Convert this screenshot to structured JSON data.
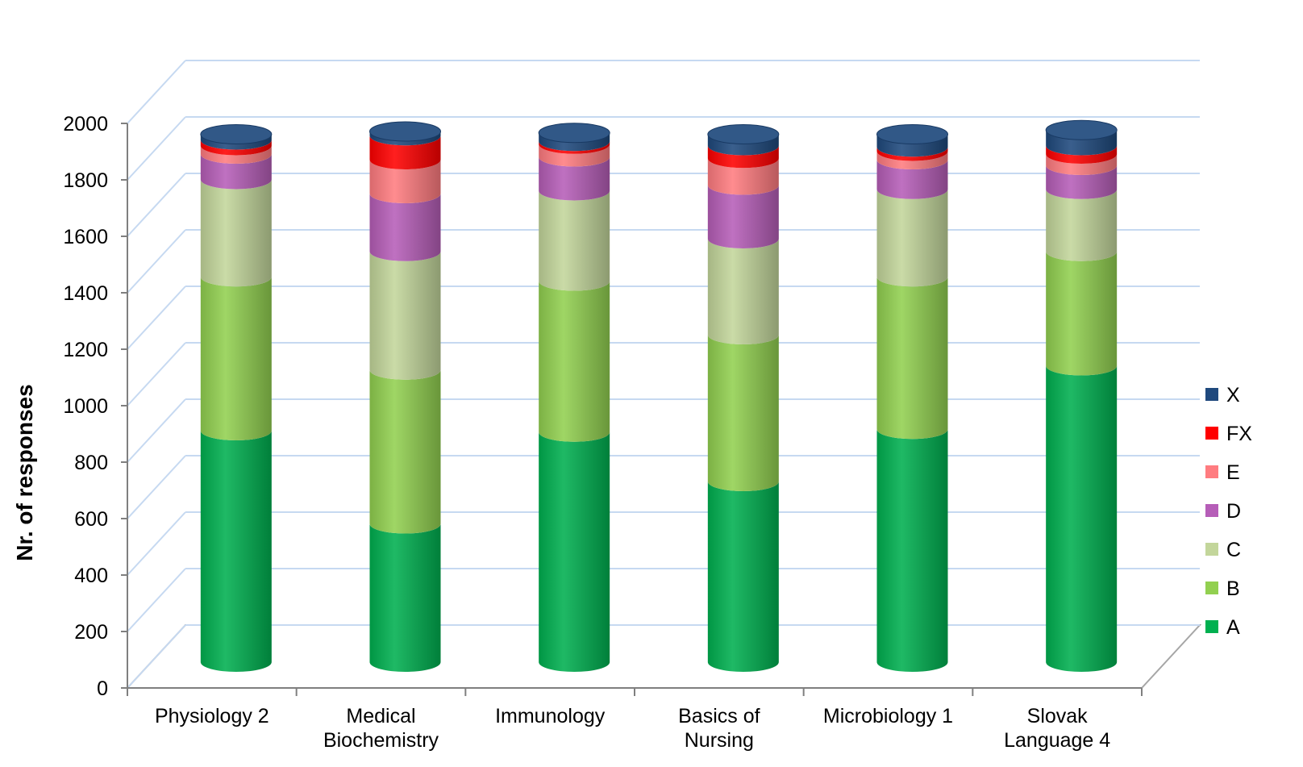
{
  "chart_data": {
    "type": "bar",
    "stacked": true,
    "style": "3d-cylinder",
    "title": "",
    "xlabel": "",
    "ylabel": "Nr. of responses",
    "ylim": [
      0,
      2000
    ],
    "yticks": [
      0,
      200,
      400,
      600,
      800,
      1000,
      1200,
      1400,
      1600,
      1800,
      2000
    ],
    "grid": true,
    "legend_position": "right",
    "categories": [
      [
        "Physiology 2"
      ],
      [
        "Medical",
        "Biochemistry"
      ],
      [
        "Immunology"
      ],
      [
        "Basics of",
        "Nursing"
      ],
      [
        "Microbiology 1"
      ],
      [
        "Slovak",
        "Language 4"
      ]
    ],
    "series": [
      {
        "name": "A",
        "color": "#00b050",
        "values": [
          820,
          490,
          815,
          640,
          825,
          1050
        ]
      },
      {
        "name": "B",
        "color": "#92d050",
        "values": [
          545,
          545,
          535,
          520,
          540,
          405
        ]
      },
      {
        "name": "C",
        "color": "#c3d69b",
        "values": [
          345,
          420,
          320,
          340,
          310,
          220
        ]
      },
      {
        "name": "D",
        "color": "#b65eb8",
        "values": [
          90,
          205,
          120,
          190,
          105,
          85
        ]
      },
      {
        "name": "E",
        "color": "#ff7c80",
        "values": [
          30,
          120,
          45,
          95,
          30,
          40
        ]
      },
      {
        "name": "FX",
        "color": "#ff0000",
        "values": [
          20,
          85,
          10,
          45,
          15,
          30
        ]
      },
      {
        "name": "X",
        "color": "#1f497d",
        "values": [
          20,
          15,
          30,
          40,
          45,
          55
        ]
      }
    ]
  }
}
